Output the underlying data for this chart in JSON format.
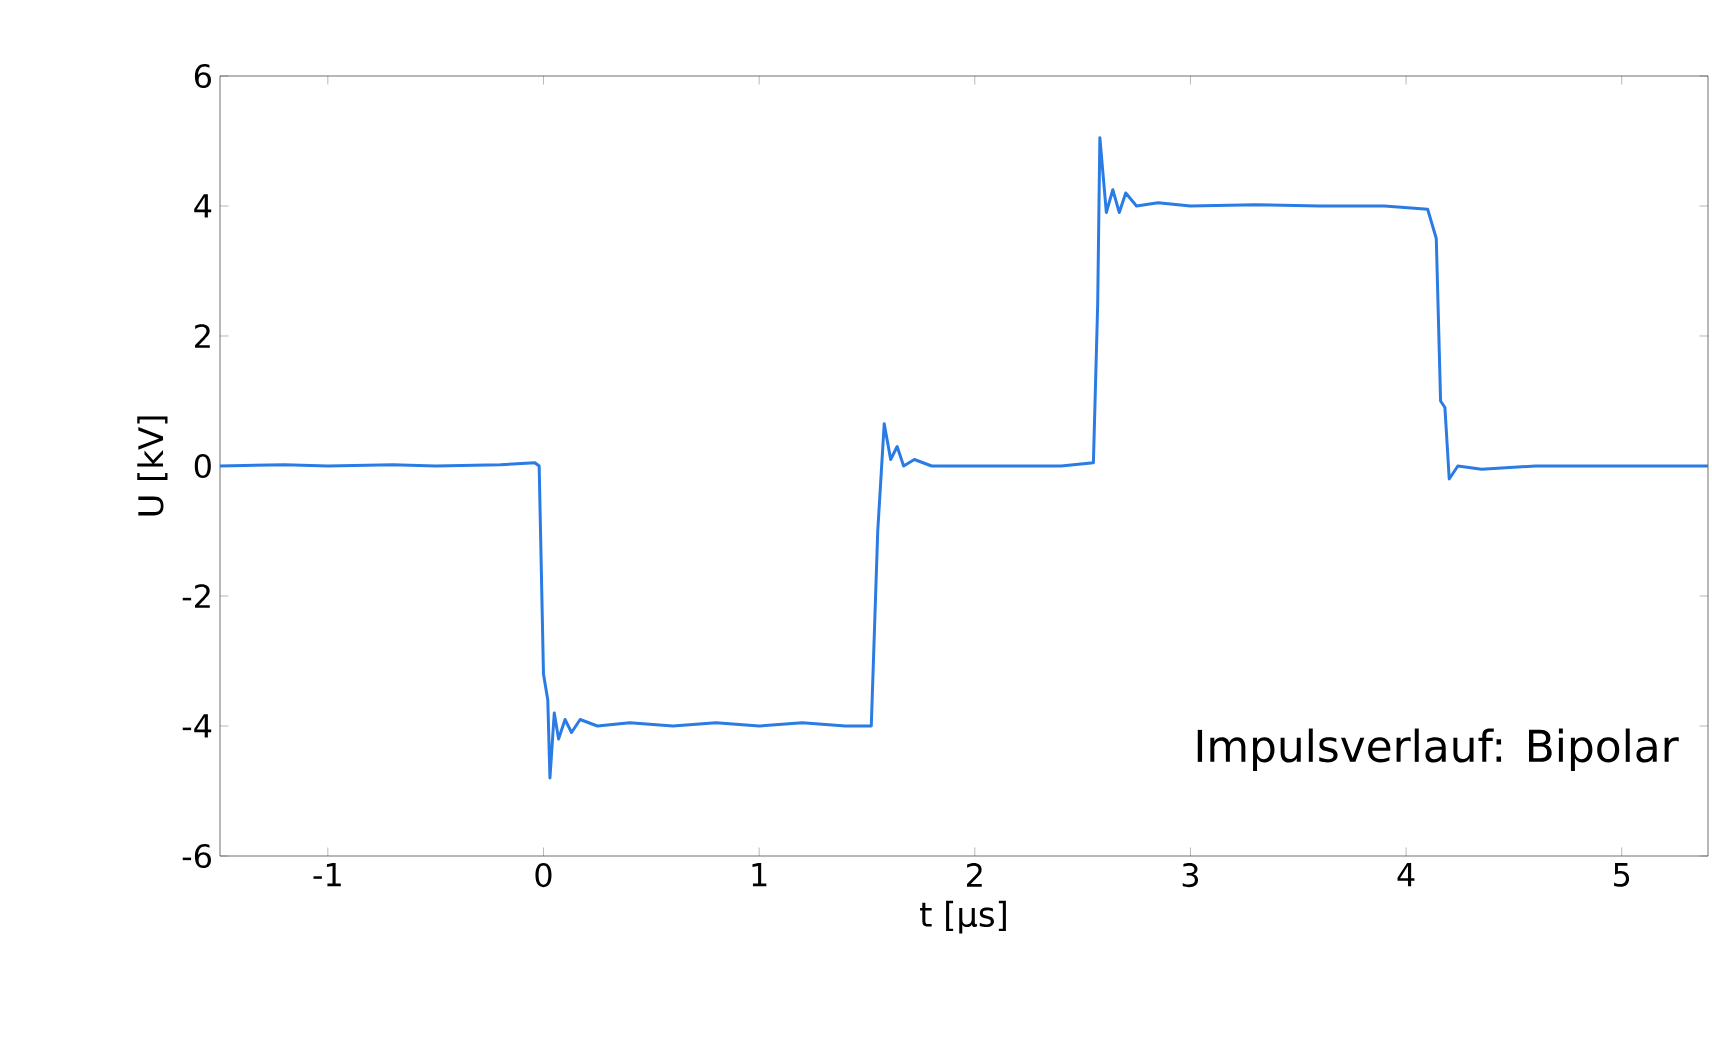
{
  "chart_data": {
    "type": "line",
    "xlabel": "t [µs]",
    "ylabel": "U [kV]",
    "annotations": [
      "Impulsverlauf: Bipolar"
    ],
    "xlim": [
      -1.5,
      5.4
    ],
    "xticks": [
      -1,
      0,
      1,
      2,
      3,
      4,
      5
    ],
    "ylim": [
      -6,
      6
    ],
    "yticks": [
      -6,
      -4,
      -2,
      0,
      2,
      4,
      6
    ],
    "grid": false,
    "marker": "none",
    "line_style": "solid",
    "series": [
      {
        "color": "#2a7be4",
        "x": [
          -1.5,
          -1.2,
          -1.0,
          -0.7,
          -0.5,
          -0.2,
          -0.04,
          -0.02,
          0.0,
          0.02,
          0.03,
          0.05,
          0.07,
          0.1,
          0.13,
          0.17,
          0.25,
          0.4,
          0.6,
          0.8,
          1.0,
          1.2,
          1.4,
          1.52,
          1.55,
          1.58,
          1.61,
          1.64,
          1.67,
          1.72,
          1.8,
          2.0,
          2.2,
          2.4,
          2.55,
          2.57,
          2.58,
          2.61,
          2.64,
          2.67,
          2.7,
          2.75,
          2.85,
          3.0,
          3.3,
          3.6,
          3.9,
          4.1,
          4.14,
          4.16,
          4.18,
          4.2,
          4.24,
          4.35,
          4.6,
          5.0,
          5.4
        ],
        "values": [
          0,
          0.02,
          0,
          0.02,
          0,
          0.02,
          0.05,
          0.0,
          -3.2,
          -3.6,
          -4.8,
          -3.8,
          -4.2,
          -3.9,
          -4.1,
          -3.9,
          -4.0,
          -3.95,
          -4.0,
          -3.95,
          -4.0,
          -3.95,
          -4.0,
          -4.0,
          -1.0,
          0.65,
          0.1,
          0.3,
          0.0,
          0.1,
          0.0,
          0.0,
          0.0,
          0.0,
          0.05,
          2.5,
          5.05,
          3.9,
          4.25,
          3.9,
          4.2,
          4.0,
          4.05,
          4.0,
          4.02,
          4.0,
          4.0,
          3.95,
          3.5,
          1.0,
          0.9,
          -0.2,
          0.0,
          -0.05,
          0.0,
          0.0,
          0.0
        ]
      }
    ]
  }
}
